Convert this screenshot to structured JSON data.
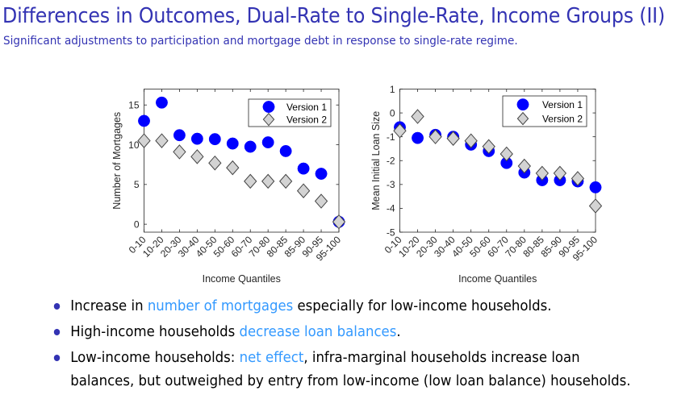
{
  "slide": {
    "title": "Differences in Outcomes, Dual-Rate to Single-Rate, Income Groups (II)",
    "subtitle": "Significant adjustments to participation and mortgage debt in response to single-rate regime."
  },
  "colors": {
    "title": "#3333b3",
    "highlight": "#3399ff",
    "series1": "#0000ff",
    "series2": "#d3d3d3"
  },
  "bullets": [
    {
      "parts": [
        {
          "text": "Increase in ",
          "hl": false
        },
        {
          "text": "number of mortgages",
          "hl": true
        },
        {
          "text": " especially for low-income households.",
          "hl": false
        }
      ]
    },
    {
      "parts": [
        {
          "text": "High-income households ",
          "hl": false
        },
        {
          "text": "decrease loan balances",
          "hl": true
        },
        {
          "text": ".",
          "hl": false
        }
      ]
    },
    {
      "parts": [
        {
          "text": "Low-income households: ",
          "hl": false
        },
        {
          "text": "net effect",
          "hl": true
        },
        {
          "text": ", infra-marginal households increase loan",
          "hl": false
        }
      ],
      "continuation": "balances, but outweighed by entry from low-income (low loan balance) households."
    }
  ],
  "chart_data": [
    {
      "type": "scatter",
      "title": "",
      "xlabel": "Income Quantiles",
      "ylabel": "Number of Mortgages",
      "categories": [
        "0-10",
        "10-20",
        "20-30",
        "30-40",
        "40-50",
        "50-60",
        "60-70",
        "70-80",
        "80-85",
        "85-90",
        "90-95",
        "95-100"
      ],
      "ylim": [
        -1,
        17
      ],
      "yticks": [
        0,
        5,
        10,
        15
      ],
      "grid": false,
      "legend": "top-right",
      "series": [
        {
          "name": "Version 1",
          "marker": "circle",
          "values": [
            13.0,
            15.3,
            11.2,
            10.75,
            10.7,
            10.15,
            9.75,
            10.3,
            9.2,
            7.0,
            6.35,
            0.3
          ]
        },
        {
          "name": "Version 2",
          "marker": "diamond",
          "values": [
            10.5,
            10.5,
            9.1,
            8.5,
            7.7,
            7.1,
            5.4,
            5.4,
            5.4,
            4.2,
            2.9,
            0.3
          ]
        }
      ]
    },
    {
      "type": "scatter",
      "title": "",
      "xlabel": "Income Quantiles",
      "ylabel": "Mean Initial Loan Size",
      "categories": [
        "0-10",
        "10-20",
        "20-30",
        "30-40",
        "40-50",
        "50-60",
        "60-70",
        "70-80",
        "80-85",
        "85-90",
        "90-95",
        "95-100"
      ],
      "ylim": [
        -5,
        1
      ],
      "yticks": [
        -5,
        -4,
        -3,
        -2,
        -1,
        0,
        1
      ],
      "grid": false,
      "legend": "top-right",
      "series": [
        {
          "name": "Version 1",
          "marker": "circle",
          "values": [
            -0.6,
            -1.05,
            -0.92,
            -1.0,
            -1.33,
            -1.6,
            -2.1,
            -2.5,
            -2.82,
            -2.82,
            -2.87,
            -3.12
          ]
        },
        {
          "name": "Version 2",
          "marker": "diamond",
          "values": [
            -0.75,
            -0.15,
            -1.0,
            -1.07,
            -1.17,
            -1.41,
            -1.72,
            -2.23,
            -2.53,
            -2.53,
            -2.75,
            -3.9
          ]
        }
      ]
    }
  ]
}
